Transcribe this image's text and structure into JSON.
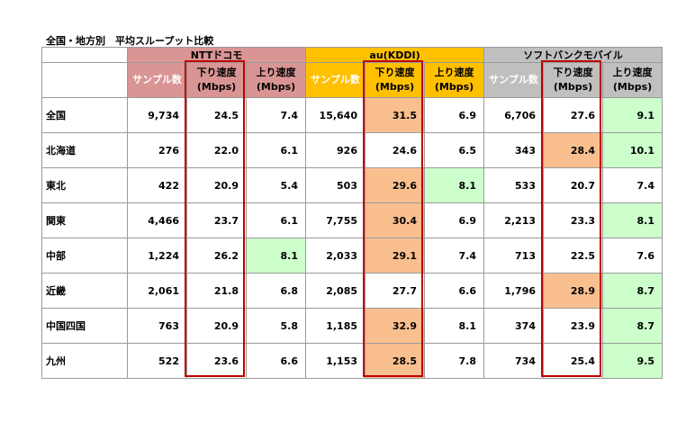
{
  "title": "全国・地方別　平均スループット比較",
  "carriers": [
    "NTTドコモ",
    "au(KDDI)",
    "ソフトバンクモバイル"
  ],
  "sub_headers": {
    "samples": "サンプル数",
    "down_line1": "下り速度",
    "down_line2": "(Mbps)",
    "up_line1": "上り速度",
    "up_line2": "(Mbps)"
  },
  "rows": [
    {
      "region": "全国",
      "values": [
        "9,734",
        "24.5",
        "7.4",
        "15,640",
        "31.5",
        "6.9",
        "6,706",
        "27.6",
        "9.1"
      ]
    },
    {
      "region": "北海道",
      "values": [
        "276",
        "22.0",
        "6.1",
        "926",
        "24.6",
        "6.5",
        "343",
        "28.4",
        "10.1"
      ]
    },
    {
      "region": "東北",
      "values": [
        "422",
        "20.9",
        "5.4",
        "503",
        "29.6",
        "8.1",
        "533",
        "20.7",
        "7.4"
      ]
    },
    {
      "region": "関東",
      "values": [
        "4,466",
        "23.7",
        "6.1",
        "7,755",
        "30.4",
        "6.9",
        "2,213",
        "23.3",
        "8.1"
      ]
    },
    {
      "region": "中部",
      "values": [
        "1,224",
        "26.2",
        "8.1",
        "2,033",
        "29.1",
        "7.4",
        "713",
        "22.5",
        "7.6"
      ]
    },
    {
      "region": "近畿",
      "values": [
        "2,061",
        "21.8",
        "6.8",
        "2,085",
        "27.7",
        "6.6",
        "1,796",
        "28.9",
        "8.7"
      ]
    },
    {
      "region": "中国四国",
      "values": [
        "763",
        "20.9",
        "5.8",
        "1,185",
        "32.9",
        "8.1",
        "374",
        "23.9",
        "8.7"
      ]
    },
    {
      "region": "九州",
      "values": [
        "522",
        "23.6",
        "6.6",
        "1,153",
        "28.5",
        "7.8",
        "734",
        "25.4",
        "9.5"
      ]
    }
  ],
  "highlights": {
    "orange": [
      [
        0,
        4
      ],
      [
        1,
        7
      ],
      [
        2,
        4
      ],
      [
        3,
        4
      ],
      [
        4,
        4
      ],
      [
        5,
        7
      ],
      [
        6,
        4
      ],
      [
        7,
        4
      ]
    ],
    "green": [
      [
        0,
        8
      ],
      [
        1,
        8
      ],
      [
        2,
        5
      ],
      [
        3,
        8
      ],
      [
        4,
        2
      ],
      [
        5,
        8
      ],
      [
        6,
        8
      ],
      [
        7,
        8
      ]
    ]
  },
  "colors": {
    "docomo": "#d99594",
    "au": "#ffc000",
    "softbank": "#bfbfbf",
    "best_download": "#fabf8f",
    "best_upload": "#ccffcc",
    "outline": "#c00000"
  }
}
